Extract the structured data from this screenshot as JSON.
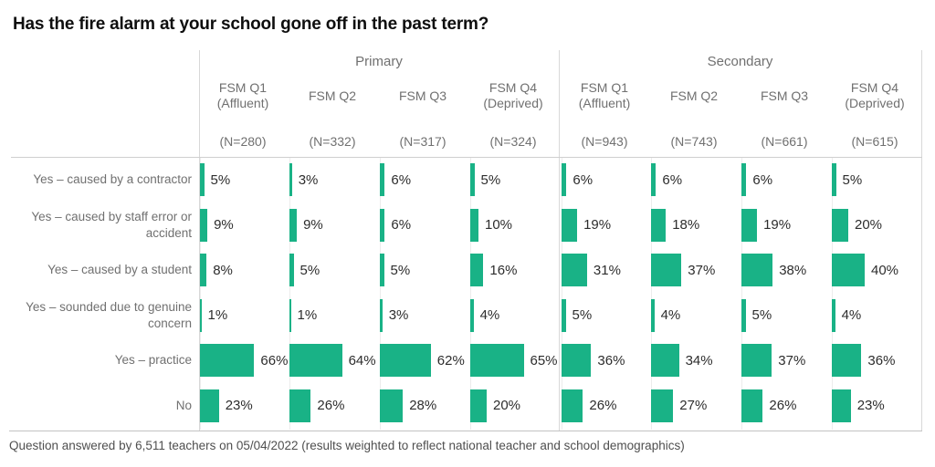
{
  "chart_data": {
    "type": "bar",
    "title": "Has the fire alarm at your school gone off in the past term?",
    "footnote": "Question answered by 6,511 teachers on 05/04/2022 (results weighted to reflect national teacher and school demographics)",
    "unit": "%",
    "value_suffix": "%",
    "bar_color": "#19b286",
    "xlim": [
      0,
      100
    ],
    "grid": "light column guide lines per panel, header and footer separator rules",
    "legend_position": "none",
    "group_labels": [
      "Primary",
      "Secondary"
    ],
    "categories": [
      "Yes – caused by a contractor",
      "Yes – caused by staff error or\naccident",
      "Yes – caused by a student",
      "Yes – sounded due to genuine\nconcern",
      "Yes – practice",
      "No"
    ],
    "series": [
      {
        "group": "Primary",
        "name": "FSM Q1",
        "qualifier": "(Affluent)",
        "n": "(N=280)",
        "values": [
          5,
          9,
          8,
          1,
          66,
          23
        ]
      },
      {
        "group": "Primary",
        "name": "FSM Q2",
        "qualifier": "",
        "n": "(N=332)",
        "values": [
          3,
          9,
          5,
          1,
          64,
          26
        ]
      },
      {
        "group": "Primary",
        "name": "FSM Q3",
        "qualifier": "",
        "n": "(N=317)",
        "values": [
          6,
          6,
          5,
          3,
          62,
          28
        ]
      },
      {
        "group": "Primary",
        "name": "FSM Q4",
        "qualifier": "(Deprived)",
        "n": "(N=324)",
        "values": [
          5,
          10,
          16,
          4,
          65,
          20
        ]
      },
      {
        "group": "Secondary",
        "name": "FSM Q1",
        "qualifier": "(Affluent)",
        "n": "(N=943)",
        "values": [
          6,
          19,
          31,
          5,
          36,
          26
        ]
      },
      {
        "group": "Secondary",
        "name": "FSM Q2",
        "qualifier": "",
        "n": "(N=743)",
        "values": [
          6,
          18,
          37,
          4,
          34,
          27
        ]
      },
      {
        "group": "Secondary",
        "name": "FSM Q3",
        "qualifier": "",
        "n": "(N=661)",
        "values": [
          6,
          19,
          38,
          5,
          37,
          26
        ]
      },
      {
        "group": "Secondary",
        "name": "FSM Q4",
        "qualifier": "(Deprived)",
        "n": "(N=615)",
        "values": [
          5,
          20,
          40,
          4,
          36,
          23
        ]
      }
    ]
  }
}
